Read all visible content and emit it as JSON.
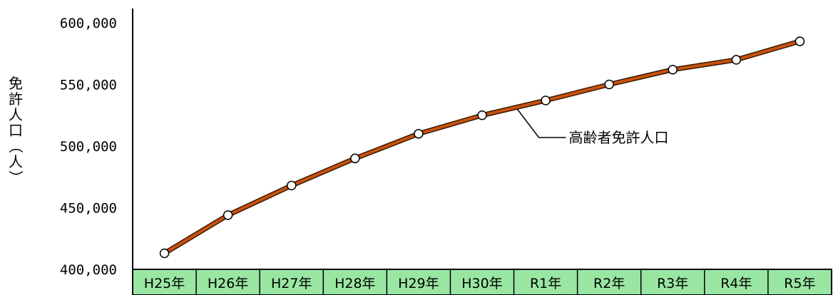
{
  "chart_data": {
    "type": "line",
    "title": "",
    "xlabel": "",
    "ylabel": "免許人口（人）",
    "ylim": [
      400000,
      600000
    ],
    "yticks": [
      400000,
      450000,
      500000,
      550000,
      600000
    ],
    "ytick_labels": [
      "400,000",
      "450,000",
      "500,000",
      "550,000",
      "600,000"
    ],
    "categories": [
      "H25年",
      "H26年",
      "H27年",
      "H28年",
      "H29年",
      "H30年",
      "R1年",
      "R2年",
      "R3年",
      "R4年",
      "R5年"
    ],
    "series": [
      {
        "name": "高齢者免許人口",
        "values": [
          413000,
          444000,
          468000,
          490000,
          510000,
          525000,
          537000,
          550000,
          562000,
          570000,
          585000
        ]
      }
    ],
    "grid": false,
    "legend": "callout-annotation",
    "colors": {
      "line_outer": "#3a1a00",
      "line_inner": "#c8520f",
      "marker_fill": "#ffffff",
      "marker_stroke": "#000000",
      "category_band": "#99e6a3",
      "category_border": "#000000"
    }
  }
}
